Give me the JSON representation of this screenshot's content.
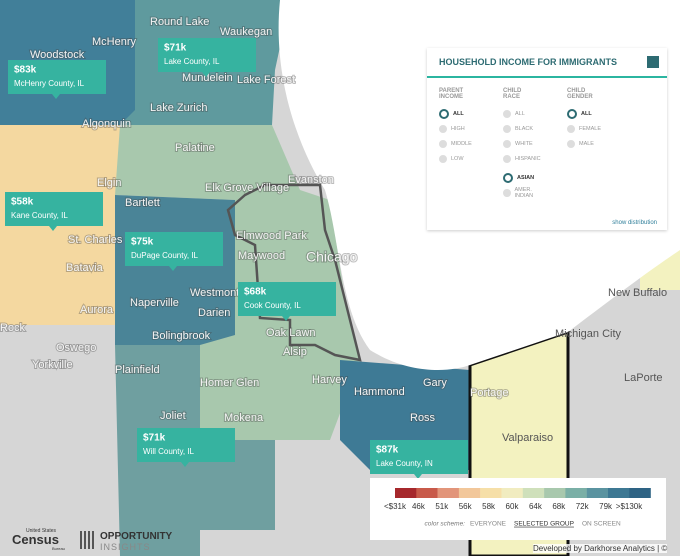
{
  "places": [
    "Round Lake",
    "Waukegan",
    "McHenry",
    "Woodstock",
    "Mundelein",
    "Lake Forest",
    "Lake Zurich",
    "Algonquin",
    "Palatine",
    "Elgin",
    "Evanston",
    "Elk Grove Village",
    "Bartlett",
    "Elmwood Park",
    "St. Charles",
    "Chicago",
    "Maywood",
    "Batavia",
    "Westmont",
    "Naperville",
    "Aurora",
    "Darien",
    "Oak Lawn",
    "Bolingbrook",
    "Rock",
    "Oswego",
    "Alsip",
    "Yorkville",
    "Plainfield",
    "Harvey",
    "Homer Glen",
    "Hammond",
    "Gary",
    "Portage",
    "Ross",
    "Joliet",
    "Mokena",
    "Valparaiso",
    "New Buffalo",
    "Michigan City",
    "LaPorte"
  ],
  "callouts": [
    {
      "value": "$83k",
      "label": "McHenry County, IL"
    },
    {
      "value": "$71k",
      "label": "Lake County, IL"
    },
    {
      "value": "$58k",
      "label": "Kane County, IL"
    },
    {
      "value": "$75k",
      "label": "DuPage County, IL"
    },
    {
      "value": "$68k",
      "label": "Cook County, IL"
    },
    {
      "value": "$71k",
      "label": "Will County, IL"
    },
    {
      "value": "$87k",
      "label": "Lake County, IN"
    }
  ],
  "panel": {
    "title": "HOUSEHOLD INCOME FOR IMMIGRANTS",
    "groups": [
      {
        "heading": "PARENT INCOME",
        "options": [
          "ALL",
          "HIGH",
          "MIDDLE",
          "LOW"
        ]
      },
      {
        "heading": "CHILD RACE",
        "options": [
          "ALL",
          "BLACK",
          "WHITE",
          "HISPANIC",
          "ASIAN",
          "AMER. INDIAN"
        ]
      },
      {
        "heading": "CHILD GENDER",
        "options": [
          "ALL",
          "FEMALE",
          "MALE"
        ]
      }
    ],
    "link": "show distribution"
  },
  "legend": {
    "ticks": [
      "<$31k",
      "46k",
      "51k",
      "56k",
      "58k",
      "60k",
      "64k",
      "68k",
      "72k",
      "79k",
      ">$130k"
    ],
    "scheme_label": "color scheme:",
    "schemes": [
      "EVERYONE",
      "SELECTED GROUP",
      "ON SCREEN"
    ]
  },
  "footer": {
    "credit": "Developed by Darkhorse Analytics | ©",
    "census": "Census",
    "census_small": "United States",
    "census_bureau": "Bureau",
    "oi": "OPPORTUNITY",
    "oi2": "INSIGHTS"
  }
}
